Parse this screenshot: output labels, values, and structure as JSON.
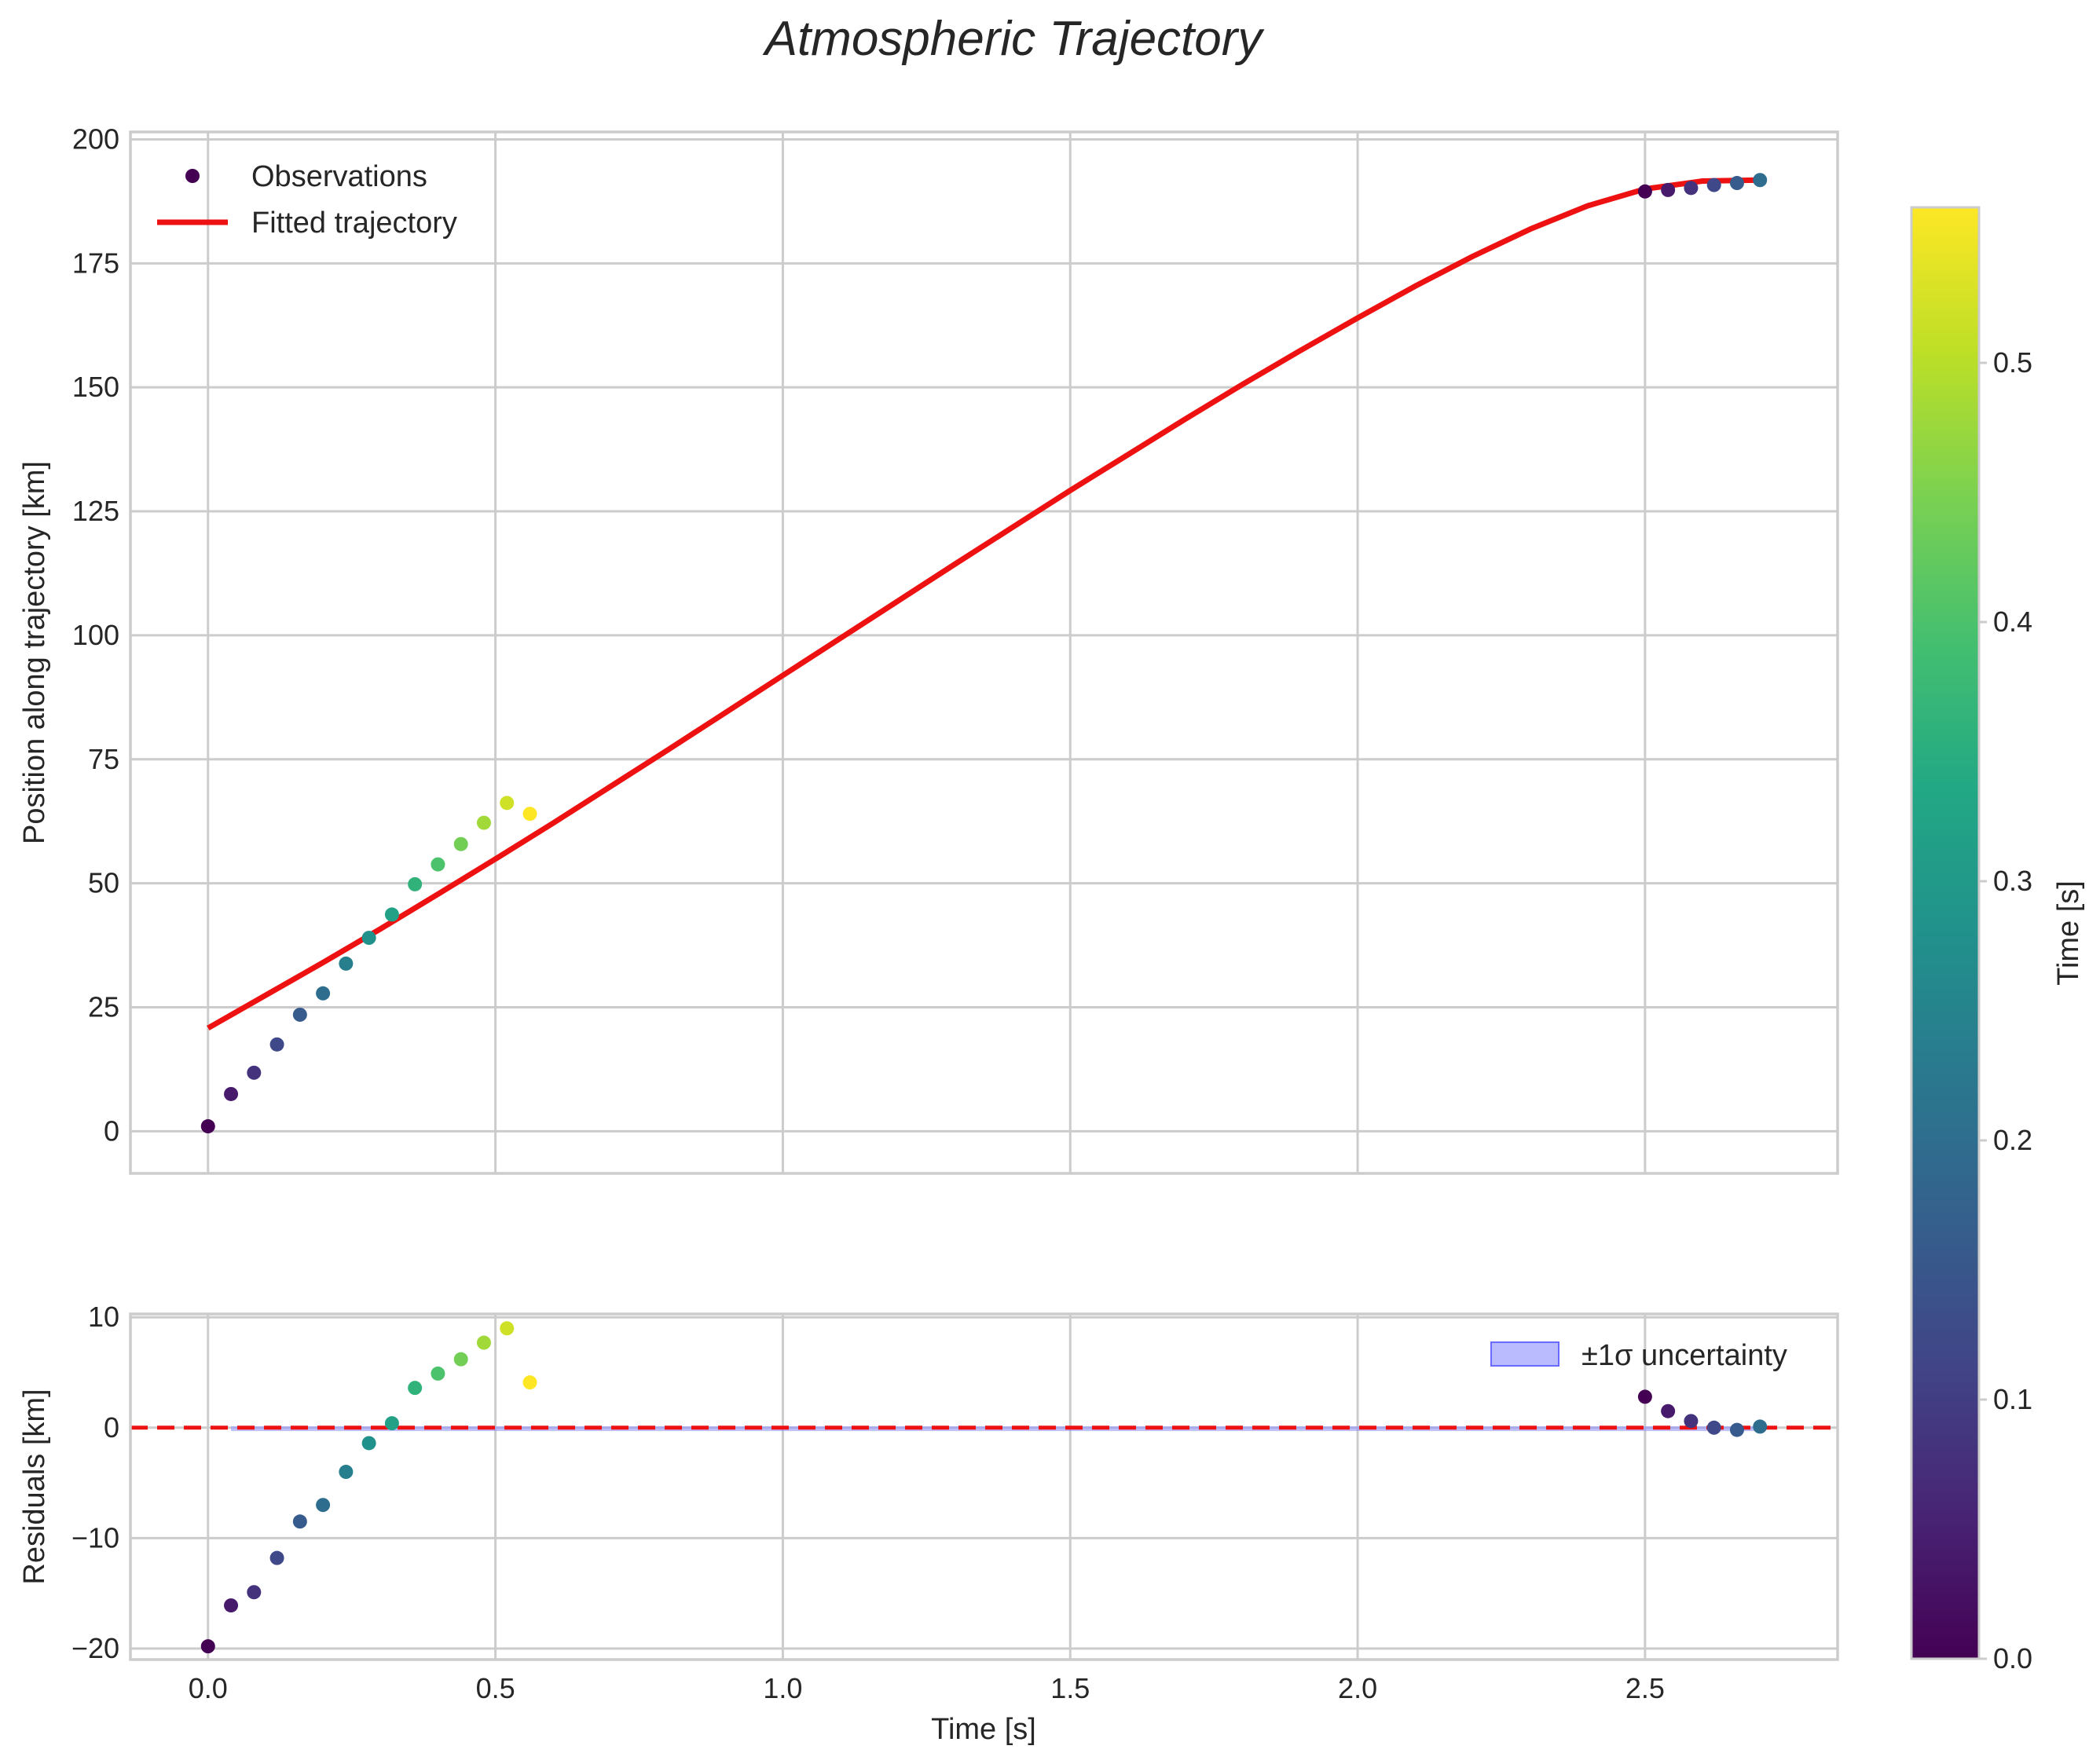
{
  "chart_data": {
    "type": "scatter",
    "title": "Atmospheric Trajectory",
    "xlabel": "Time [s]",
    "xlim": [
      -0.135,
      2.835
    ],
    "xticks": [
      0.0,
      0.5,
      1.0,
      1.5,
      2.0,
      2.5
    ],
    "xtick_labels": [
      "0.0",
      "0.5",
      "1.0",
      "1.5",
      "2.0",
      "2.5"
    ],
    "colormap": "viridis",
    "colorbar": {
      "label": "Time [s]",
      "range": [
        0.0,
        0.56
      ],
      "ticks": [
        0.0,
        0.1,
        0.2,
        0.3,
        0.4,
        0.5
      ],
      "tick_labels": [
        "0.0",
        "0.1",
        "0.2",
        "0.3",
        "0.4",
        "0.5"
      ]
    },
    "top_panel": {
      "ylabel": "Position along trajectory [km]",
      "ylim": [
        -8.5,
        201.5
      ],
      "yticks": [
        0,
        25,
        50,
        75,
        100,
        125,
        150,
        175,
        200
      ],
      "ytick_labels": [
        "0",
        "25",
        "50",
        "75",
        "100",
        "125",
        "150",
        "175",
        "200"
      ],
      "legend": [
        {
          "label": "Observations",
          "kind": "marker"
        },
        {
          "label": "Fitted trajectory",
          "kind": "line"
        }
      ],
      "observations": [
        {
          "t": 0.0,
          "pos": 1.0,
          "color_value": 0.0
        },
        {
          "t": 0.04,
          "pos": 7.5,
          "color_value": 0.04
        },
        {
          "t": 0.08,
          "pos": 11.8,
          "color_value": 0.08
        },
        {
          "t": 0.12,
          "pos": 17.5,
          "color_value": 0.12
        },
        {
          "t": 0.16,
          "pos": 23.5,
          "color_value": 0.16
        },
        {
          "t": 0.2,
          "pos": 27.8,
          "color_value": 0.2
        },
        {
          "t": 0.24,
          "pos": 33.8,
          "color_value": 0.24
        },
        {
          "t": 0.28,
          "pos": 39.0,
          "color_value": 0.28
        },
        {
          "t": 0.32,
          "pos": 43.7,
          "color_value": 0.32
        },
        {
          "t": 0.36,
          "pos": 49.8,
          "color_value": 0.36
        },
        {
          "t": 0.4,
          "pos": 53.8,
          "color_value": 0.4
        },
        {
          "t": 0.44,
          "pos": 57.9,
          "color_value": 0.44
        },
        {
          "t": 0.48,
          "pos": 62.2,
          "color_value": 0.48
        },
        {
          "t": 0.52,
          "pos": 66.2,
          "color_value": 0.52
        },
        {
          "t": 0.56,
          "pos": 64.0,
          "color_value": 0.56
        },
        {
          "t": 2.5,
          "pos": 189.5,
          "color_value": 0.0
        },
        {
          "t": 2.54,
          "pos": 189.8,
          "color_value": 0.04
        },
        {
          "t": 2.58,
          "pos": 190.2,
          "color_value": 0.08
        },
        {
          "t": 2.62,
          "pos": 190.8,
          "color_value": 0.12
        },
        {
          "t": 2.66,
          "pos": 191.2,
          "color_value": 0.16
        },
        {
          "t": 2.7,
          "pos": 191.8,
          "color_value": 0.2
        }
      ],
      "fit": {
        "label": "Fitted trajectory",
        "color": "#ee1111",
        "t": [
          0.0,
          0.1,
          0.2,
          0.3,
          0.4,
          0.5,
          0.6,
          0.7,
          0.8,
          0.9,
          1.0,
          1.1,
          1.2,
          1.3,
          1.4,
          1.5,
          1.6,
          1.7,
          1.8,
          1.9,
          2.0,
          2.1,
          2.2,
          2.3,
          2.4,
          2.5,
          2.6,
          2.7
        ],
        "pos": [
          20.8,
          27.4,
          34.0,
          40.8,
          47.8,
          54.9,
          62.1,
          69.5,
          76.9,
          84.4,
          91.9,
          99.4,
          106.9,
          114.4,
          121.8,
          129.2,
          136.4,
          143.6,
          150.6,
          157.4,
          164.0,
          170.4,
          176.4,
          181.9,
          186.6,
          190.0,
          191.6,
          191.8
        ]
      }
    },
    "bottom_panel": {
      "ylabel": "Residuals [km]",
      "ylim": [
        -21.0,
        10.3
      ],
      "yticks": [
        -20,
        -10,
        0,
        10
      ],
      "ytick_labels": [
        "−20",
        "−10",
        "0",
        "10"
      ],
      "legend": [
        {
          "label": "±1σ uncertainty",
          "kind": "patch"
        }
      ],
      "zero_line_color": "#ee1111",
      "uncertainty_color": "#8c8cff",
      "uncertainty_band": {
        "t": [
          0.04,
          2.7
        ],
        "half_width": 0.12
      },
      "residuals": [
        {
          "t": 0.0,
          "res": -19.8
        },
        {
          "t": 0.04,
          "res": -16.1
        },
        {
          "t": 0.08,
          "res": -14.9
        },
        {
          "t": 0.12,
          "res": -11.8
        },
        {
          "t": 0.16,
          "res": -8.5
        },
        {
          "t": 0.2,
          "res": -7.0
        },
        {
          "t": 0.24,
          "res": -4.0
        },
        {
          "t": 0.28,
          "res": -1.4
        },
        {
          "t": 0.32,
          "res": 0.4
        },
        {
          "t": 0.36,
          "res": 3.6
        },
        {
          "t": 0.4,
          "res": 4.9
        },
        {
          "t": 0.44,
          "res": 6.2
        },
        {
          "t": 0.48,
          "res": 7.7
        },
        {
          "t": 0.52,
          "res": 9.0
        },
        {
          "t": 0.56,
          "res": 4.1
        },
        {
          "t": 2.5,
          "res": 2.8
        },
        {
          "t": 2.54,
          "res": 1.5
        },
        {
          "t": 2.58,
          "res": 0.6
        },
        {
          "t": 2.62,
          "res": 0.0
        },
        {
          "t": 2.66,
          "res": -0.2
        },
        {
          "t": 2.7,
          "res": 0.1
        }
      ]
    }
  }
}
